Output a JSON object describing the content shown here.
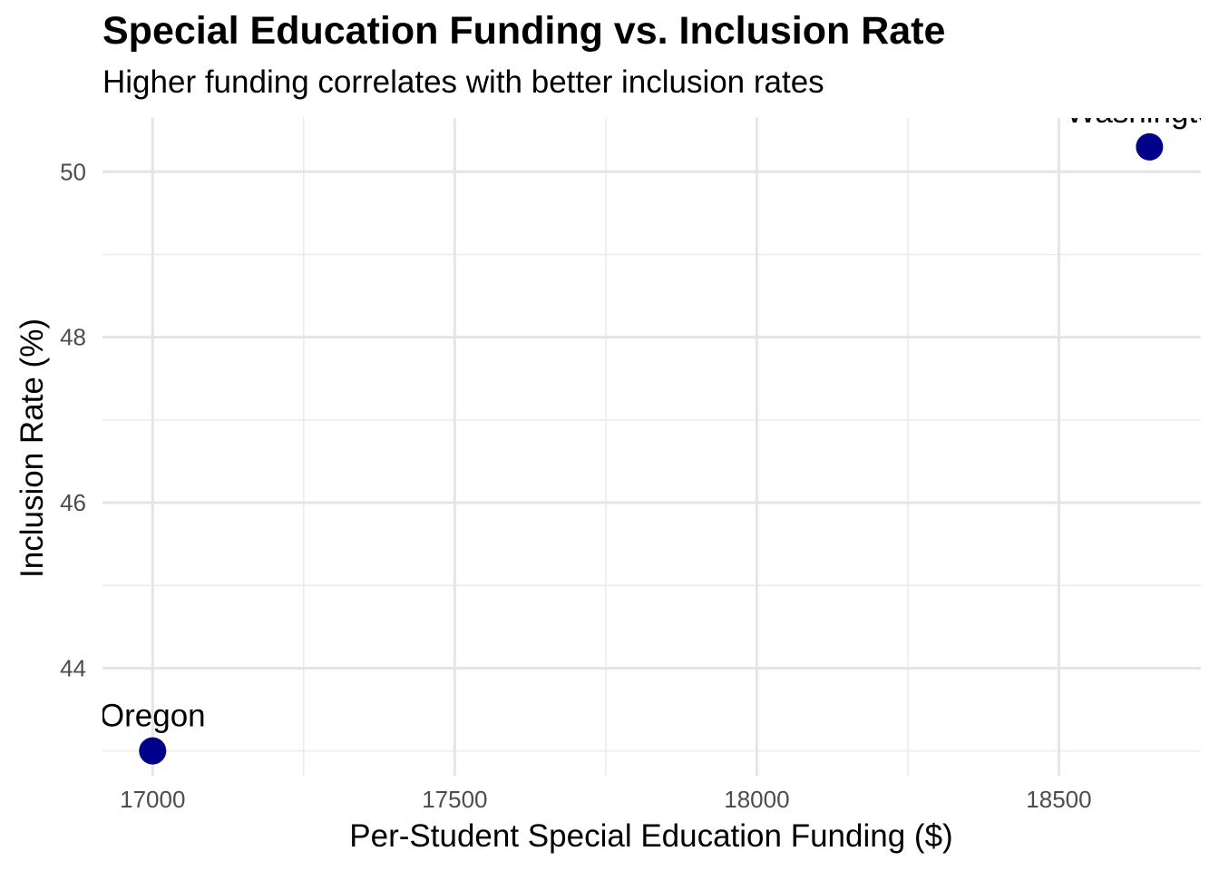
{
  "chart_data": {
    "type": "scatter",
    "title": "Special Education Funding vs. Inclusion Rate",
    "subtitle": "Higher funding correlates with better inclusion rates",
    "xlabel": "Per-Student Special Education Funding ($)",
    "ylabel": "Inclusion Rate (%)",
    "xlim": [
      16917,
      18735
    ],
    "ylim": [
      42.7,
      50.65
    ],
    "x_ticks": [
      17000,
      17500,
      18000,
      18500
    ],
    "y_ticks": [
      44,
      46,
      48,
      50
    ],
    "x_tick_labels": [
      "17000",
      "17500",
      "18000",
      "18500"
    ],
    "y_tick_labels": [
      "44",
      "46",
      "48",
      "50"
    ],
    "grid": true,
    "legend": "none",
    "point_color": "#00008B",
    "points": [
      {
        "label": "Oregon",
        "x": 17000,
        "y": 43.0
      },
      {
        "label": "Washington",
        "x": 18650,
        "y": 50.3
      }
    ]
  }
}
